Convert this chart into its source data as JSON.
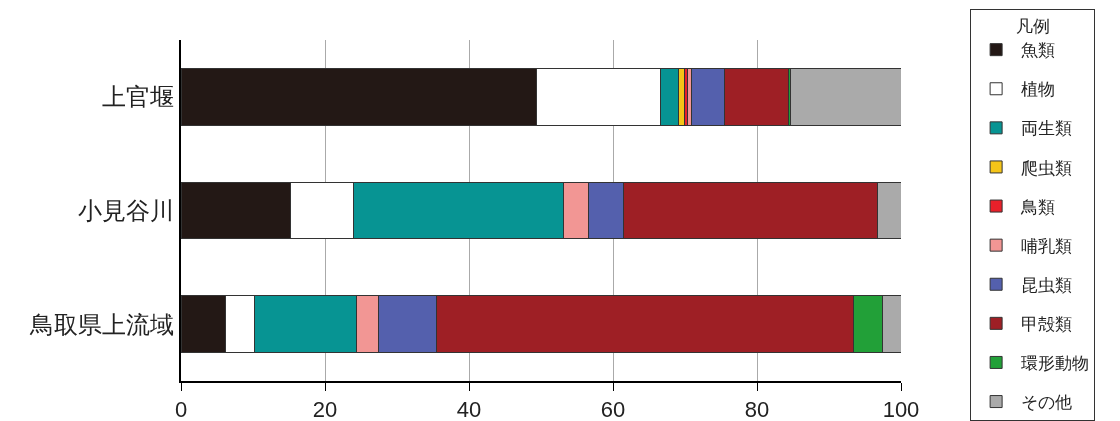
{
  "chart_data": {
    "type": "bar",
    "orientation": "horizontal",
    "stacked": true,
    "legend_title": "凡例",
    "legend": "right",
    "grid": "x",
    "categories": [
      "上官堰",
      "小見谷川",
      "鳥取県上流域"
    ],
    "xlim": [
      0,
      100
    ],
    "xticks": [
      0,
      20,
      40,
      60,
      80,
      100
    ],
    "series": [
      {
        "name": "魚類",
        "color": "#231815",
        "values": [
          49.4,
          15.2,
          6.2
        ]
      },
      {
        "name": "植物",
        "color": "#ffffff",
        "values": [
          17.2,
          8.8,
          4.0
        ]
      },
      {
        "name": "両生類",
        "color": "#079493",
        "values": [
          2.5,
          29.1,
          14.2
        ]
      },
      {
        "name": "爬虫類",
        "color": "#f5c518",
        "values": [
          0.8,
          null,
          null
        ]
      },
      {
        "name": "鳥類",
        "color": "#e8202a",
        "values": [
          0.4,
          null,
          null
        ]
      },
      {
        "name": "哺乳類",
        "color": "#f29694",
        "values": [
          0.6,
          3.5,
          3.0
        ]
      },
      {
        "name": "昆虫類",
        "color": "#5460ad",
        "values": [
          4.6,
          4.8,
          8.1
        ]
      },
      {
        "name": "甲殻類",
        "color": "#9e1f25",
        "values": [
          8.9,
          35.4,
          57.9
        ]
      },
      {
        "name": "環形動物",
        "color": "#22a038",
        "values": [
          0.3,
          null,
          4.0
        ]
      },
      {
        "name": "その他",
        "color": "#aaaaaa",
        "values": [
          15.3,
          3.2,
          2.6
        ]
      }
    ]
  }
}
